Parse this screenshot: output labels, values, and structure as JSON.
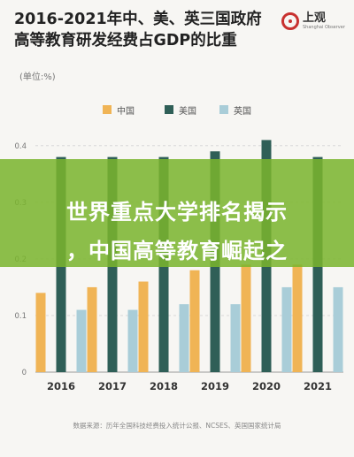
{
  "title": "2016-2021年中、美、英三国政府高等教育研发经费占GDP的比重",
  "logo": {
    "name": "上观",
    "sub": "Shanghai Observer"
  },
  "unit": "(单位:%)",
  "legend": [
    {
      "name": "中国",
      "color": "#f0b455"
    },
    {
      "name": "美国",
      "color": "#2f5f57"
    },
    {
      "name": "英国",
      "color": "#a9cdd8"
    }
  ],
  "banner": {
    "line1": "世界重点大学排名揭示",
    "line2": "，中国高等教育崛起之"
  },
  "source": "数据来源：历年全国科技经费投入统计公报、NCSES、英国国家统计局",
  "chart_data": {
    "type": "bar",
    "categories": [
      "2016",
      "2017",
      "2018",
      "2019",
      "2020",
      "2021"
    ],
    "series": [
      {
        "name": "中国",
        "color": "#f0b455",
        "values": [
          0.14,
          0.15,
          0.16,
          0.18,
          0.19,
          0.19
        ]
      },
      {
        "name": "美国",
        "color": "#2f5f57",
        "values": [
          0.38,
          0.38,
          0.38,
          0.39,
          0.41,
          0.38
        ]
      },
      {
        "name": "英国",
        "color": "#a9cdd8",
        "values": [
          0.11,
          0.11,
          0.12,
          0.12,
          0.15,
          0.15
        ]
      }
    ],
    "yticks": [
      "0",
      "0.1",
      "0.2",
      "0.3",
      "0.4"
    ],
    "ylim": [
      0,
      0.42
    ],
    "grid": true,
    "legend": "top-center"
  }
}
